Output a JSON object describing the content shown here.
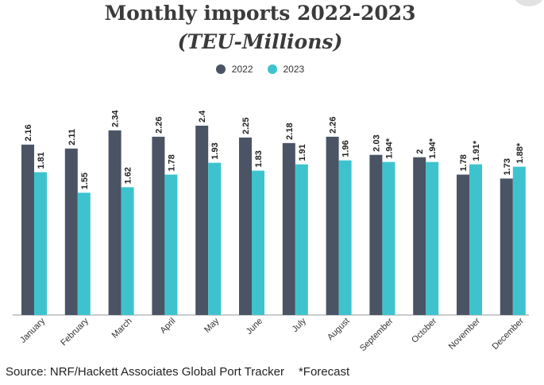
{
  "chart_data": {
    "type": "bar",
    "title": "Monthly imports 2022-2023",
    "subtitle": "(TEU-Millions)",
    "categories": [
      "January",
      "February",
      "March",
      "April",
      "May",
      "June",
      "July",
      "August",
      "September",
      "October",
      "November",
      "December"
    ],
    "series": [
      {
        "name": "2022",
        "color": "#4a5464",
        "values": [
          2.16,
          2.11,
          2.34,
          2.26,
          2.4,
          2.25,
          2.18,
          2.26,
          2.03,
          2,
          1.78,
          1.73
        ],
        "labels": [
          "2.16",
          "2.11",
          "2.34",
          "2.26",
          "2.4",
          "2.25",
          "2.18",
          "2.26",
          "2.03",
          "2",
          "1.78",
          "1.73"
        ]
      },
      {
        "name": "2023",
        "color": "#3ec3ce",
        "values": [
          1.81,
          1.55,
          1.62,
          1.78,
          1.93,
          1.83,
          1.91,
          1.96,
          1.94,
          1.94,
          1.91,
          1.88
        ],
        "labels": [
          "1.81",
          "1.55",
          "1.62",
          "1.78",
          "1.93",
          "1.83",
          "1.91",
          "1.96",
          "1.94*",
          "1.94*",
          "1.91*",
          "1.88*"
        ]
      }
    ],
    "ylim": [
      0,
      2.4
    ],
    "grid": false,
    "legend_position": "top-center"
  },
  "footer": {
    "source": "Source: NRF/Hackett Associates Global Port Tracker",
    "note": "*Forecast"
  }
}
